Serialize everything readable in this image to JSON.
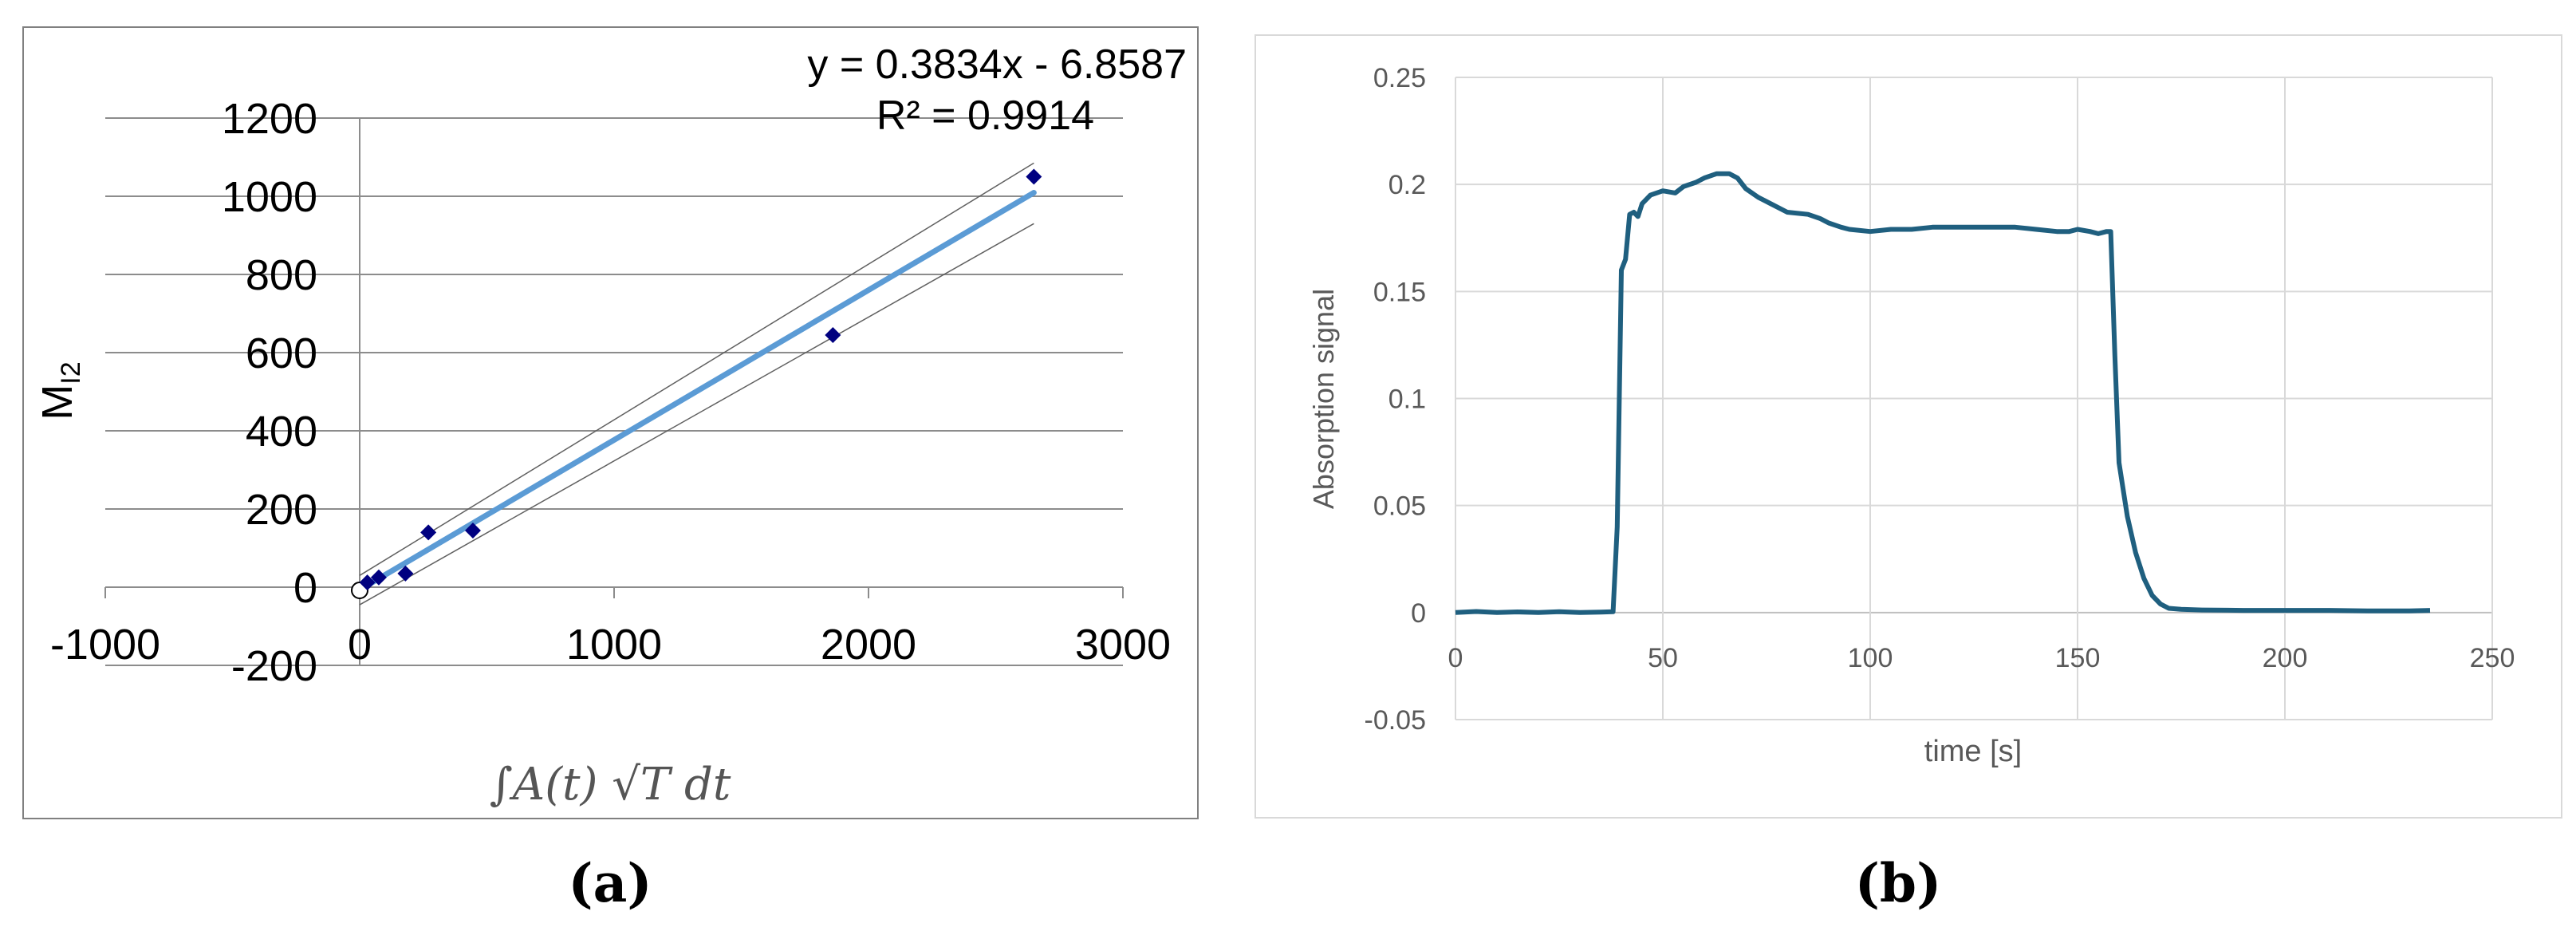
{
  "panel_labels": {
    "a": "(a)",
    "b": "(b)"
  },
  "colors": {
    "marker": "#000080",
    "trend": "#5B9BD5",
    "band": "#606060",
    "signal": "#1F5F7F",
    "grid_a": "#8c8c8c",
    "grid_b": "#d9d9d9",
    "axis_text_b": "#595959"
  },
  "chart_data": [
    {
      "type": "scatter",
      "xlabel": "∫A(t) √T dt",
      "ylabel": "M",
      "ylabel_sub": "I2",
      "xlim": [
        -1000,
        3000
      ],
      "ylim": [
        -200,
        1200
      ],
      "xticks": [
        -1000,
        0,
        1000,
        2000,
        3000
      ],
      "yticks": [
        -200,
        0,
        200,
        400,
        600,
        800,
        1000,
        1200
      ],
      "grid": true,
      "points": [
        {
          "x": 0,
          "y": 0,
          "style": "hollow-circle"
        },
        {
          "x": 30,
          "y": 12
        },
        {
          "x": 75,
          "y": 25
        },
        {
          "x": 180,
          "y": 35
        },
        {
          "x": 270,
          "y": 140
        },
        {
          "x": 445,
          "y": 145
        },
        {
          "x": 1860,
          "y": 645
        },
        {
          "x": 2650,
          "y": 1050
        }
      ],
      "trendline": {
        "slope": 0.3834,
        "intercept": -6.8587,
        "x_range": [
          0,
          2650
        ],
        "equation": "y = 0.3834x - 6.8587",
        "r2": "R² = 0.9914"
      },
      "confidence_band": {
        "upper": [
          [
            0,
            30
          ],
          [
            2650,
            1085
          ]
        ],
        "lower": [
          [
            0,
            -45
          ],
          [
            2650,
            930
          ]
        ]
      }
    },
    {
      "type": "line",
      "xlabel": "time [s]",
      "ylabel": "Absorption signal",
      "xlim": [
        0,
        250
      ],
      "ylim": [
        -0.05,
        0.25
      ],
      "xticks": [
        0,
        50,
        100,
        150,
        200,
        250
      ],
      "yticks": [
        -0.05,
        0,
        0.05,
        0.1,
        0.15,
        0.2,
        0.25
      ],
      "ytick_labels": [
        "-0.05",
        "0",
        "0.05",
        "0.1",
        "0.15",
        "0.2",
        "0.25"
      ],
      "grid": true,
      "series": [
        {
          "points": [
            [
              0,
              0
            ],
            [
              5,
              0.0005
            ],
            [
              10,
              0
            ],
            [
              15,
              0.0003
            ],
            [
              20,
              0
            ],
            [
              25,
              0.0004
            ],
            [
              30,
              0
            ],
            [
              35,
              0.0002
            ],
            [
              38,
              0.0004
            ],
            [
              39,
              0.04
            ],
            [
              40,
              0.16
            ],
            [
              41,
              0.165
            ],
            [
              42,
              0.186
            ],
            [
              43,
              0.187
            ],
            [
              44,
              0.185
            ],
            [
              45,
              0.191
            ],
            [
              47,
              0.195
            ],
            [
              50,
              0.197
            ],
            [
              53,
              0.196
            ],
            [
              55,
              0.199
            ],
            [
              58,
              0.201
            ],
            [
              60,
              0.203
            ],
            [
              63,
              0.205
            ],
            [
              66,
              0.205
            ],
            [
              68,
              0.203
            ],
            [
              70,
              0.198
            ],
            [
              73,
              0.194
            ],
            [
              76,
              0.191
            ],
            [
              80,
              0.187
            ],
            [
              85,
              0.186
            ],
            [
              88,
              0.184
            ],
            [
              90,
              0.182
            ],
            [
              93,
              0.18
            ],
            [
              95,
              0.179
            ],
            [
              100,
              0.178
            ],
            [
              105,
              0.179
            ],
            [
              110,
              0.179
            ],
            [
              115,
              0.18
            ],
            [
              120,
              0.18
            ],
            [
              125,
              0.18
            ],
            [
              130,
              0.18
            ],
            [
              135,
              0.18
            ],
            [
              140,
              0.179
            ],
            [
              145,
              0.178
            ],
            [
              148,
              0.178
            ],
            [
              150,
              0.179
            ],
            [
              153,
              0.178
            ],
            [
              155,
              0.177
            ],
            [
              157,
              0.178
            ],
            [
              158,
              0.178
            ],
            [
              159,
              0.12
            ],
            [
              160,
              0.07
            ],
            [
              162,
              0.045
            ],
            [
              164,
              0.028
            ],
            [
              166,
              0.016
            ],
            [
              168,
              0.008
            ],
            [
              170,
              0.004
            ],
            [
              172,
              0.002
            ],
            [
              175,
              0.0015
            ],
            [
              180,
              0.0012
            ],
            [
              190,
              0.001
            ],
            [
              200,
              0.001
            ],
            [
              210,
              0.001
            ],
            [
              220,
              0.0008
            ],
            [
              230,
              0.0008
            ],
            [
              235,
              0.001
            ]
          ]
        }
      ]
    }
  ]
}
